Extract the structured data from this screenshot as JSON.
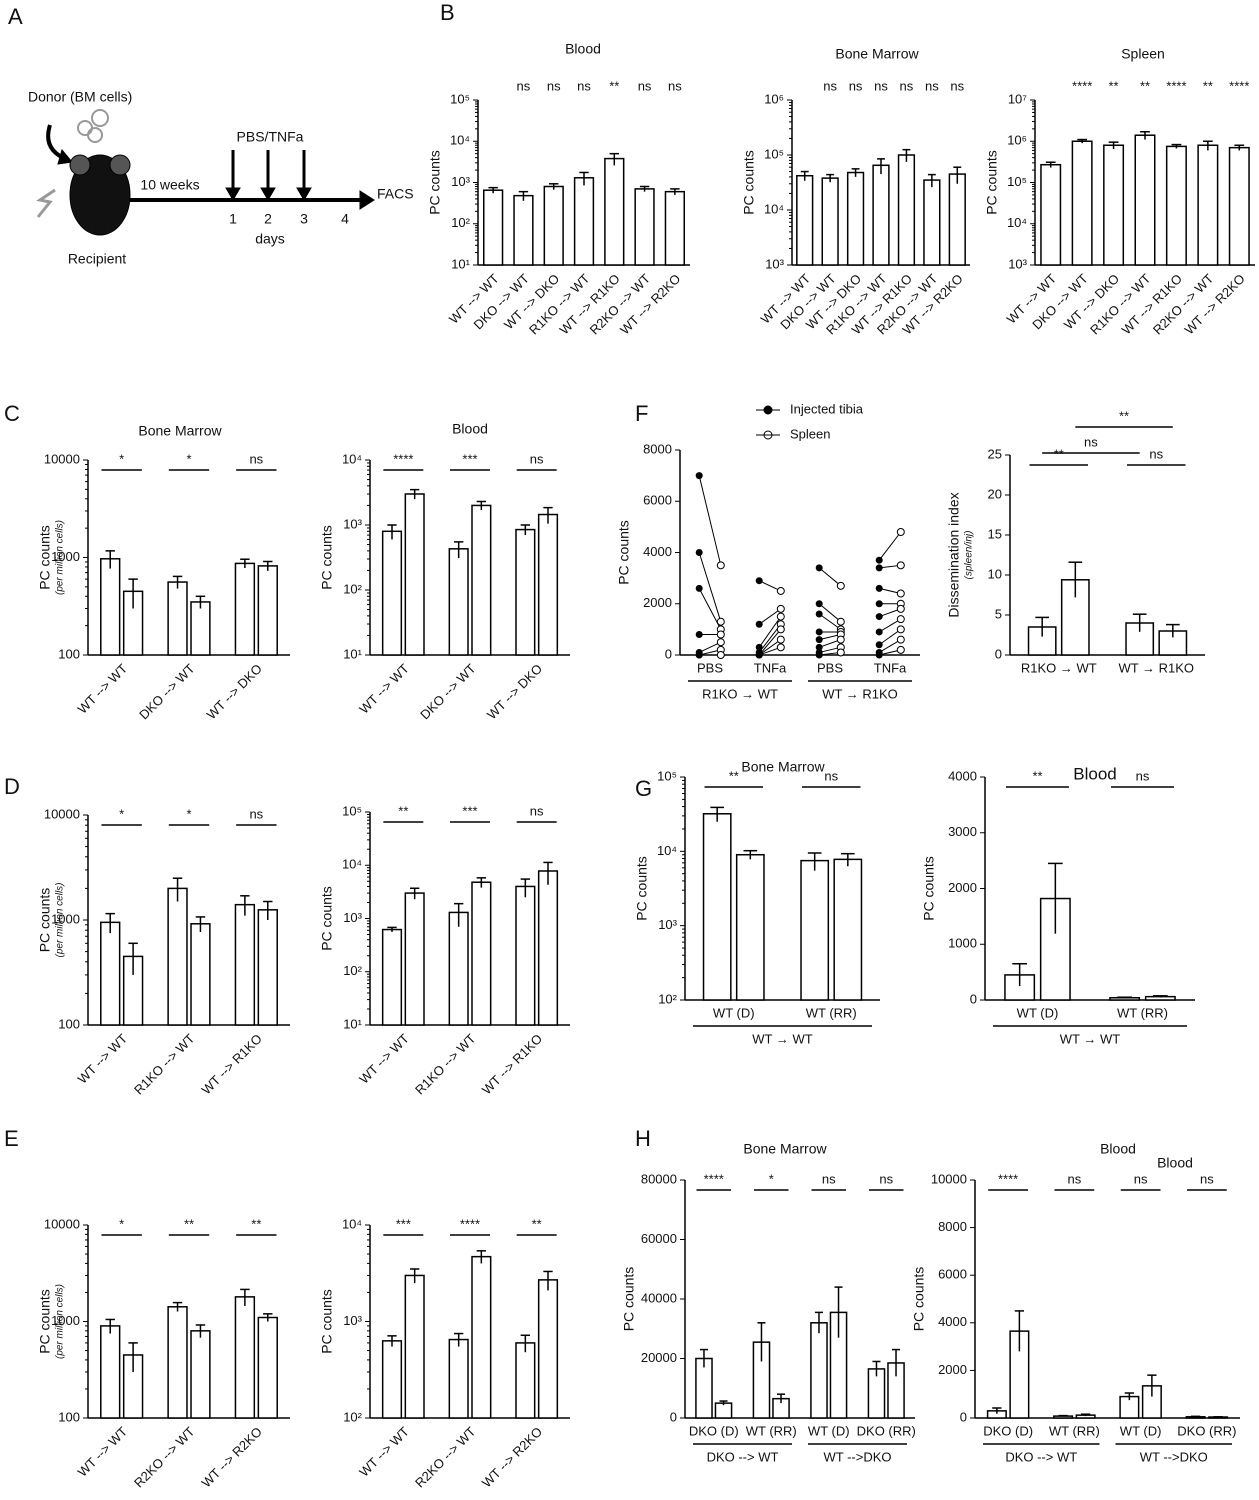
{
  "panel_labels": [
    "A",
    "B",
    "C",
    "D",
    "E",
    "F",
    "G",
    "H"
  ],
  "diagram": {
    "donor": "Donor (BM cells)",
    "duration": "10 weeks",
    "treatment": "PBS/TNFa",
    "days": [
      "1",
      "2",
      "3",
      "4"
    ],
    "days_label": "days",
    "readout": "FACS",
    "recipient": "Recipient"
  },
  "chart_data": [
    {
      "type": "bar",
      "title": "Blood",
      "ylabel": "PC counts",
      "log": true,
      "ylim": [
        10,
        100000
      ],
      "yticks": [
        {
          "value": 10,
          "label": "10¹"
        },
        {
          "value": 100,
          "label": "10²"
        },
        {
          "value": 1000,
          "label": "10³"
        },
        {
          "value": 10000,
          "label": "10⁴"
        },
        {
          "value": 100000,
          "label": "10⁵"
        }
      ],
      "categories": [
        "WT --> WT",
        "DKO --> WT",
        "WT --> DKO",
        "R1KO --> WT",
        "WT --> R1KO",
        "R2KO --> WT",
        "WT --> R2KO"
      ],
      "series": [
        {
          "values": [
            650,
            480,
            800,
            1300,
            3800,
            700,
            600
          ],
          "errors": [
            100,
            120,
            130,
            450,
            1200,
            100,
            100
          ]
        }
      ],
      "significance": [
        null,
        "ns",
        "ns",
        "ns",
        "**",
        "ns",
        "ns"
      ],
      "bar_fill": "#ffffff",
      "stroke": "#000000"
    },
    {
      "type": "bar",
      "title": "Bone Marrow",
      "ylabel": "PC counts",
      "log": true,
      "ylim": [
        1000,
        1000000
      ],
      "yticks": [
        {
          "value": 1000,
          "label": "10³"
        },
        {
          "value": 10000,
          "label": "10⁴"
        },
        {
          "value": 100000,
          "label": "10⁵"
        },
        {
          "value": 1000000,
          "label": "10⁶"
        }
      ],
      "categories": [
        "WT --> WT",
        "DKO --> WT",
        "WT --> DKO",
        "R1KO --> WT",
        "WT --> R1KO",
        "R2KO --> WT",
        "WT --> R2KO"
      ],
      "series": [
        {
          "values": [
            42000,
            38000,
            48000,
            65000,
            100000,
            35000,
            45000
          ],
          "errors": [
            8000,
            6000,
            8000,
            20000,
            25000,
            9000,
            15000
          ]
        }
      ],
      "significance": [
        null,
        "ns",
        "ns",
        "ns",
        "ns",
        "ns",
        "ns"
      ],
      "bar_fill": "#ffffff",
      "stroke": "#000000"
    },
    {
      "type": "bar",
      "title": "Spleen",
      "ylabel": "PC counts",
      "log": true,
      "ylim": [
        1000,
        10000000
      ],
      "yticks": [
        {
          "value": 1000,
          "label": "10³"
        },
        {
          "value": 10000,
          "label": "10⁴"
        },
        {
          "value": 100000,
          "label": "10⁵"
        },
        {
          "value": 1000000,
          "label": "10⁶"
        },
        {
          "value": 10000000,
          "label": "10⁷"
        }
      ],
      "categories": [
        "WT --> WT",
        "DKO --> WT",
        "WT --> DKO",
        "R1KO --> WT",
        "WT --> R1KO",
        "R2KO --> WT",
        "WT --> R2KO"
      ],
      "series": [
        {
          "values": [
            270000,
            1000000,
            800000,
            1400000,
            750000,
            800000,
            700000
          ],
          "errors": [
            40000,
            100000,
            150000,
            300000,
            80000,
            200000,
            100000
          ]
        }
      ],
      "significance": [
        null,
        "****",
        "**",
        "**",
        "****",
        "**",
        "****"
      ],
      "bar_fill": "#ffffff",
      "stroke": "#000000"
    },
    {
      "type": "bar",
      "title": "Bone Marrow",
      "ylabel": "PC counts",
      "ylabel_note": "(per million cells)",
      "log": true,
      "ylim": [
        100,
        10000
      ],
      "yticks": [
        100,
        1000,
        10000
      ],
      "categories": [
        "WT --> WT",
        "DKO --> WT",
        "WT --> DKO"
      ],
      "series": [
        {
          "values": [
            970,
            560,
            870
          ],
          "errors": [
            200,
            80,
            90
          ]
        },
        {
          "values": [
            450,
            350,
            820
          ],
          "errors": [
            150,
            50,
            90
          ]
        }
      ],
      "significance": [
        "*",
        "*",
        "ns"
      ],
      "bar_fill": "#ffffff",
      "stroke": "#000000"
    },
    {
      "type": "bar",
      "title": "Blood",
      "ylabel": "PC counts",
      "log": true,
      "ylim": [
        10,
        10000
      ],
      "yticks": [
        {
          "value": 10,
          "label": "10¹"
        },
        {
          "value": 100,
          "label": "10²"
        },
        {
          "value": 1000,
          "label": "10³"
        },
        {
          "value": 10000,
          "label": "10⁴"
        }
      ],
      "categories": [
        "WT --> WT",
        "DKO --> WT",
        "WT --> DKO"
      ],
      "series": [
        {
          "values": [
            800,
            430,
            850
          ],
          "errors": [
            200,
            120,
            150
          ]
        },
        {
          "values": [
            3000,
            2000,
            1450
          ],
          "errors": [
            500,
            300,
            400
          ]
        }
      ],
      "significance": [
        "****",
        "***",
        "ns"
      ],
      "bar_fill": "#ffffff",
      "stroke": "#000000"
    },
    {
      "type": "paired",
      "ylabel": "PC counts",
      "ylim": [
        0,
        8000
      ],
      "yticks": [
        0,
        2000,
        4000,
        6000,
        8000
      ],
      "categories": [
        "PBS",
        "TNFa",
        "PBS",
        "TNFa"
      ],
      "group_labels": [
        "R1KO → WT",
        "WT → R1KO"
      ],
      "series": [
        {
          "name": "Injected tibia",
          "values": [
            [
              7000,
              4000,
              2600,
              800,
              100,
              0,
              0
            ],
            [
              2900,
              1200,
              300,
              100,
              0,
              0,
              0
            ],
            [
              3400,
              2000,
              1600,
              900,
              600,
              300,
              100,
              0
            ],
            [
              3700,
              3400,
              2600,
              2000,
              1500,
              900,
              400,
              100,
              0
            ]
          ]
        },
        {
          "name": "Spleen",
          "values": [
            [
              3500,
              1300,
              1000,
              800,
              500,
              200,
              0
            ],
            [
              2500,
              1800,
              1500,
              1200,
              1000,
              600,
              300
            ],
            [
              2700,
              1300,
              1000,
              900,
              800,
              600,
              300,
              100
            ],
            [
              4800,
              3500,
              2400,
              2000,
              1800,
              1400,
              1000,
              600,
              200
            ]
          ]
        }
      ]
    },
    {
      "type": "bar",
      "ylabel": "Dissemination index",
      "ylabel_note": "(spleen/inj)",
      "ylim": [
        0,
        25
      ],
      "yticks": [
        0,
        5,
        10,
        15,
        20,
        25
      ],
      "categories": [
        "R1KO → WT",
        "WT → R1KO"
      ],
      "series": [
        {
          "values": [
            3.5,
            4
          ],
          "errors": [
            1.2,
            1.1
          ]
        },
        {
          "values": [
            9.4,
            3
          ],
          "errors": [
            2.2,
            0.8
          ]
        }
      ],
      "significance": [
        "**",
        "ns"
      ],
      "extra_significance": [
        "ns",
        "**"
      ],
      "bar_fill": "#ffffff",
      "stroke": "#000000"
    },
    {
      "type": "bar",
      "ylabel": "PC counts",
      "ylabel_note": "(per million cells)",
      "log": true,
      "ylim": [
        100,
        10000
      ],
      "yticks": [
        100,
        1000,
        10000
      ],
      "categories": [
        "WT --> WT",
        "R1KO --> WT",
        "WT --> R1KO"
      ],
      "series": [
        {
          "values": [
            950,
            2000,
            1400
          ],
          "errors": [
            200,
            500,
            300
          ]
        },
        {
          "values": [
            450,
            920,
            1250
          ],
          "errors": [
            150,
            150,
            250
          ]
        }
      ],
      "significance": [
        "*",
        "*",
        "ns"
      ],
      "bar_fill": "#ffffff",
      "stroke": "#000000"
    },
    {
      "type": "bar",
      "ylabel": "PC counts",
      "log": true,
      "ylim": [
        10,
        100000
      ],
      "yticks": [
        {
          "value": 10,
          "label": "10¹"
        },
        {
          "value": 100,
          "label": "10²"
        },
        {
          "value": 1000,
          "label": "10³"
        },
        {
          "value": 10000,
          "label": "10⁴"
        },
        {
          "value": 100000,
          "label": "10⁵"
        }
      ],
      "categories": [
        "WT --> WT",
        "R1KO --> WT",
        "WT --> R1KO"
      ],
      "series": [
        {
          "values": [
            620,
            1300,
            4000
          ],
          "errors": [
            60,
            600,
            1500
          ]
        },
        {
          "values": [
            3000,
            4800,
            7800
          ],
          "errors": [
            700,
            1000,
            3500
          ]
        }
      ],
      "significance": [
        "**",
        "***",
        "ns"
      ],
      "bar_fill": "#ffffff",
      "stroke": "#000000"
    },
    {
      "type": "bar",
      "title": "Bone Marrow",
      "ylabel": "PC counts",
      "log": true,
      "ylim": [
        100,
        100000
      ],
      "yticks": [
        {
          "value": 100,
          "label": "10²"
        },
        {
          "value": 1000,
          "label": "10³"
        },
        {
          "value": 10000,
          "label": "10⁴"
        },
        {
          "value": 100000,
          "label": "10⁵"
        }
      ],
      "categories": [
        "WT (D)",
        "WT (RR)"
      ],
      "group_labels": [
        "WT → WT"
      ],
      "series": [
        {
          "values": [
            32000,
            7500
          ],
          "errors": [
            7000,
            2000
          ]
        },
        {
          "values": [
            9000,
            7800
          ],
          "errors": [
            1200,
            1500
          ]
        }
      ],
      "significance": [
        "**",
        "ns"
      ],
      "bar_fill": "#ffffff",
      "stroke": "#000000"
    },
    {
      "type": "bar",
      "title": "Blood",
      "ylabel": "PC counts",
      "ylim": [
        0,
        4000
      ],
      "yticks": [
        0,
        1000,
        2000,
        3000,
        4000
      ],
      "categories": [
        "WT (D)",
        "WT (RR)"
      ],
      "group_labels": [
        "WT → WT"
      ],
      "series": [
        {
          "values": [
            450,
            40
          ],
          "errors": [
            200,
            10
          ]
        },
        {
          "values": [
            1820,
            60
          ],
          "errors": [
            630,
            15
          ]
        }
      ],
      "significance": [
        "**",
        "ns"
      ],
      "bar_fill": "#ffffff",
      "stroke": "#000000"
    },
    {
      "type": "bar",
      "ylabel": "PC counts",
      "ylabel_note": "(per million cells)",
      "log": true,
      "ylim": [
        100,
        10000
      ],
      "yticks": [
        100,
        1000,
        10000
      ],
      "categories": [
        "WT --> WT",
        "R2KO --> WT",
        "WT --> R2KO"
      ],
      "series": [
        {
          "values": [
            900,
            1420,
            1800
          ],
          "errors": [
            150,
            150,
            350
          ]
        },
        {
          "values": [
            450,
            800,
            1100
          ],
          "errors": [
            150,
            120,
            100
          ]
        }
      ],
      "significance": [
        "*",
        "**",
        "**"
      ],
      "bar_fill": "#ffffff",
      "stroke": "#000000"
    },
    {
      "type": "bar",
      "ylabel": "PC counts",
      "log": true,
      "ylim": [
        100,
        10000
      ],
      "yticks": [
        {
          "value": 100,
          "label": "10²"
        },
        {
          "value": 1000,
          "label": "10³"
        },
        {
          "value": 10000,
          "label": "10⁴"
        }
      ],
      "categories": [
        "WT --> WT",
        "R2KO --> WT",
        "WT --> R2KO"
      ],
      "series": [
        {
          "values": [
            630,
            650,
            600
          ],
          "errors": [
            80,
            100,
            120
          ]
        },
        {
          "values": [
            3000,
            4700,
            2700
          ],
          "errors": [
            500,
            700,
            600
          ]
        }
      ],
      "significance": [
        "***",
        "****",
        "**"
      ],
      "bar_fill": "#ffffff",
      "stroke": "#000000"
    },
    {
      "type": "bar",
      "title": "Bone Marrow",
      "ylabel": "PC counts",
      "ylim": [
        0,
        80000
      ],
      "yticks": [
        0,
        20000,
        40000,
        60000,
        80000
      ],
      "categories": [
        "DKO (D)",
        "WT (RR)",
        "WT (D)",
        "DKO (RR)"
      ],
      "group_labels": [
        "DKO --> WT",
        "WT -->DKO"
      ],
      "series": [
        {
          "values": [
            20000,
            25500,
            32000,
            16500
          ],
          "errors": [
            3000,
            6500,
            3500,
            2500
          ]
        },
        {
          "values": [
            5000,
            6500,
            35500,
            18500
          ],
          "errors": [
            700,
            1500,
            8500,
            4500
          ]
        }
      ],
      "significance": [
        "****",
        "*",
        "ns",
        "ns"
      ],
      "bar_fill": "#ffffff",
      "stroke": "#000000"
    },
    {
      "type": "bar",
      "title": "Blood",
      "subtitle": "Blood",
      "ylabel": "PC counts",
      "ylim": [
        0,
        10000
      ],
      "yticks": [
        0,
        2000,
        4000,
        6000,
        8000,
        10000
      ],
      "categories": [
        "DKO (D)",
        "WT (RR)",
        "WT (D)",
        "DKO (RR)"
      ],
      "group_labels": [
        "DKO --> WT",
        "WT -->DKO"
      ],
      "series": [
        {
          "values": [
            300,
            80,
            900,
            50
          ],
          "errors": [
            120,
            20,
            150,
            20
          ]
        },
        {
          "values": [
            3650,
            120,
            1350,
            40
          ],
          "errors": [
            850,
            40,
            450,
            10
          ]
        }
      ],
      "significance": [
        "****",
        "ns",
        "ns",
        "ns"
      ],
      "bar_fill": "#ffffff",
      "stroke": "#000000"
    }
  ]
}
